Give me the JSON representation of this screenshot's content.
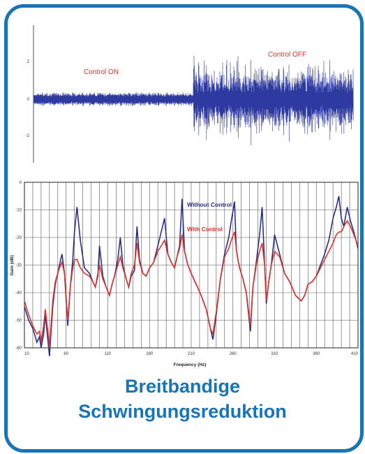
{
  "caption": {
    "line1": "Breitbandige",
    "line2": "Schwingungsreduktion"
  },
  "colors": {
    "frame": "#1874b4",
    "without_control": "#2a2f86",
    "with_control": "#e0332c",
    "annotation": "#e0332c",
    "grid": "#444444"
  },
  "chart_data": [
    {
      "type": "line",
      "title": "",
      "xlabel": "",
      "ylabel": "",
      "ylim": [
        -3,
        3
      ],
      "y_ticks": [
        "2",
        "0",
        "-2"
      ],
      "grid": false,
      "annotations": [
        "Control ON",
        "Control OFF"
      ],
      "series": [
        {
          "label": "Control ON",
          "amplitude_range": [
            -0.4,
            0.4
          ]
        },
        {
          "label": "Control OFF",
          "amplitude_range": [
            -2.6,
            2.6
          ]
        }
      ],
      "segment_boundary_fraction": 0.5
    },
    {
      "type": "line",
      "title": "",
      "xlabel": "Frequency (Hz)",
      "ylabel": "Gain (dB)",
      "xlim": [
        10,
        410
      ],
      "ylim": [
        -60,
        0
      ],
      "x_ticks": [
        "10",
        "60",
        "110",
        "160",
        "210",
        "260",
        "310",
        "360",
        "410"
      ],
      "y_ticks": [
        "0",
        "-10",
        "-20",
        "-30",
        "-40",
        "-50",
        "-60"
      ],
      "grid": true,
      "series": [
        {
          "name": "Without Control",
          "x": [
            10,
            15,
            20,
            25,
            28,
            30,
            33,
            35,
            38,
            40,
            44,
            47,
            52,
            55,
            58,
            62,
            65,
            68,
            70,
            73,
            77,
            82,
            88,
            92,
            95,
            98,
            100,
            104,
            108,
            112,
            115,
            118,
            122,
            125,
            128,
            132,
            135,
            138,
            142,
            145,
            148,
            152,
            156,
            160,
            165,
            170,
            174,
            178,
            182,
            186,
            190,
            193,
            196,
            199,
            202,
            206,
            210,
            216,
            222,
            228,
            233,
            236,
            240,
            245,
            250,
            255,
            258,
            262,
            264,
            266,
            268,
            272,
            276,
            281,
            284,
            288,
            292,
            295,
            298,
            300,
            303,
            306,
            310,
            316,
            322,
            328,
            335,
            342,
            346,
            350,
            355,
            360,
            365,
            370,
            375,
            380,
            384,
            387,
            390,
            393,
            397,
            401,
            405,
            410
          ],
          "y": [
            -45,
            -50,
            -53,
            -58,
            -56,
            -60,
            -55,
            -48,
            -57,
            -63,
            -45,
            -37,
            -30,
            -26,
            -33,
            -52,
            -38,
            -28,
            -18,
            -9,
            -21,
            -31,
            -33,
            -36,
            -38,
            -34,
            -23,
            -34,
            -38,
            -41,
            -37,
            -34,
            -28,
            -20,
            -30,
            -35,
            -38,
            -34,
            -32,
            -16,
            -28,
            -33,
            -34,
            -31,
            -29,
            -23,
            -18,
            -13,
            -26,
            -29,
            -31,
            -27,
            -23,
            -6,
            -25,
            -30,
            -33,
            -37,
            -41,
            -46,
            -53,
            -57,
            -48,
            -35,
            -26,
            -20,
            -14,
            -7,
            -24,
            -28,
            -31,
            -35,
            -40,
            -54,
            -38,
            -29,
            -19,
            -9,
            -30,
            -44,
            -36,
            -30,
            -19,
            -26,
            -33,
            -36,
            -41,
            -43,
            -41,
            -37,
            -36,
            -34,
            -30,
            -26,
            -21,
            -13,
            -9,
            -5,
            -13,
            -16,
            -9,
            -14,
            -18,
            -24
          ]
        },
        {
          "name": "With Control",
          "x": [
            10,
            15,
            20,
            25,
            28,
            30,
            33,
            35,
            38,
            40,
            44,
            47,
            52,
            55,
            58,
            62,
            65,
            68,
            70,
            73,
            77,
            82,
            88,
            92,
            95,
            98,
            100,
            104,
            108,
            112,
            115,
            118,
            122,
            125,
            128,
            132,
            135,
            138,
            142,
            145,
            148,
            152,
            156,
            160,
            165,
            170,
            174,
            178,
            182,
            186,
            190,
            193,
            196,
            199,
            202,
            206,
            210,
            216,
            222,
            228,
            233,
            236,
            240,
            245,
            250,
            255,
            258,
            262,
            264,
            266,
            268,
            272,
            276,
            281,
            284,
            288,
            292,
            295,
            298,
            300,
            303,
            306,
            310,
            316,
            322,
            328,
            335,
            342,
            346,
            350,
            355,
            360,
            365,
            370,
            375,
            380,
            384,
            387,
            390,
            393,
            397,
            401,
            405,
            410
          ],
          "y": [
            -43,
            -48,
            -52,
            -55,
            -54,
            -58,
            -52,
            -46,
            -54,
            -60,
            -43,
            -36,
            -31,
            -29,
            -33,
            -50,
            -38,
            -31,
            -28,
            -28,
            -31,
            -33,
            -34,
            -36,
            -38,
            -33,
            -30,
            -35,
            -38,
            -41,
            -37,
            -34,
            -30,
            -27,
            -31,
            -35,
            -38,
            -33,
            -30,
            -22,
            -29,
            -33,
            -34,
            -31,
            -29,
            -25,
            -23,
            -21,
            -26,
            -29,
            -31,
            -27,
            -24,
            -19,
            -25,
            -30,
            -33,
            -37,
            -41,
            -46,
            -53,
            -55,
            -47,
            -35,
            -27,
            -24,
            -21,
            -18,
            -24,
            -28,
            -31,
            -35,
            -40,
            -52,
            -38,
            -30,
            -25,
            -22,
            -30,
            -43,
            -36,
            -30,
            -25,
            -27,
            -33,
            -36,
            -41,
            -43,
            -41,
            -37,
            -36,
            -34,
            -31,
            -28,
            -25,
            -22,
            -19,
            -18,
            -18,
            -16,
            -14,
            -16,
            -19,
            -23
          ]
        }
      ]
    }
  ]
}
